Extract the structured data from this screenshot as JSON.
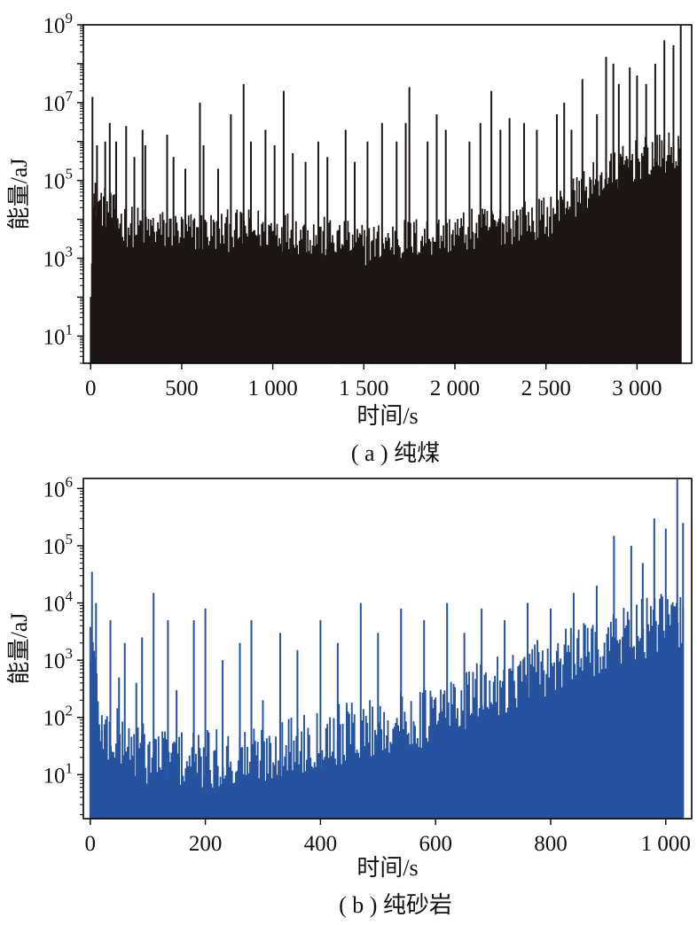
{
  "figure": {
    "captions": [
      "( a ) 纯煤",
      "( b ) 纯砂岩"
    ]
  },
  "chart_data": [
    {
      "type": "bar",
      "title": "",
      "xlabel": "时间/s",
      "ylabel": "能量/aJ",
      "yscale": "log",
      "xlim": [
        -40,
        3300
      ],
      "ylim": [
        2,
        1000000000
      ],
      "xticks": [
        0,
        500,
        1000,
        1500,
        2000,
        2500,
        3000
      ],
      "xtick_labels": [
        "0",
        "500",
        "1 000",
        "1 500",
        "2 000",
        "2 500",
        "3 000"
      ],
      "yticks": [
        10,
        1000,
        100000,
        10000000,
        1000000000
      ],
      "ytick_labels": [
        {
          "base": "10",
          "exp": "1"
        },
        {
          "base": "10",
          "exp": "3"
        },
        {
          "base": "10",
          "exp": "5"
        },
        {
          "base": "10",
          "exp": "7"
        },
        {
          "base": "10",
          "exp": "9"
        }
      ],
      "color": "#1c1614",
      "grid": false,
      "envelope": [
        [
          0,
          300
        ],
        [
          15,
          30000
        ],
        [
          200,
          6000
        ],
        [
          500,
          4000
        ],
        [
          1000,
          5000
        ],
        [
          1500,
          2000
        ],
        [
          2000,
          4000
        ],
        [
          2500,
          10000
        ],
        [
          2800,
          100000
        ],
        [
          3000,
          300000
        ],
        [
          3240,
          500000
        ]
      ],
      "peaks": [
        [
          10,
          14000000
        ],
        [
          35,
          800000
        ],
        [
          80,
          1000000
        ],
        [
          105,
          3000000
        ],
        [
          140,
          1000000
        ],
        [
          195,
          2500000
        ],
        [
          240,
          400000
        ],
        [
          285,
          2000000
        ],
        [
          300,
          800000
        ],
        [
          420,
          1500000
        ],
        [
          455,
          400000
        ],
        [
          520,
          200000
        ],
        [
          600,
          10000000
        ],
        [
          620,
          800000
        ],
        [
          700,
          200000
        ],
        [
          770,
          5000000
        ],
        [
          840,
          30000000
        ],
        [
          880,
          1000000
        ],
        [
          960,
          2000000
        ],
        [
          1010,
          800000
        ],
        [
          1060,
          20000000
        ],
        [
          1110,
          500000
        ],
        [
          1180,
          300000
        ],
        [
          1250,
          1000000
        ],
        [
          1300,
          400000
        ],
        [
          1400,
          2000000
        ],
        [
          1450,
          300000
        ],
        [
          1520,
          1000000
        ],
        [
          1600,
          3000000
        ],
        [
          1680,
          1000000
        ],
        [
          1730,
          3000000
        ],
        [
          1750,
          25000000
        ],
        [
          1850,
          1000000
        ],
        [
          1900,
          5000000
        ],
        [
          1950,
          2000000
        ],
        [
          2080,
          1000000
        ],
        [
          2140,
          3000000
        ],
        [
          2200,
          20000000
        ],
        [
          2250,
          2000000
        ],
        [
          2300,
          4000000
        ],
        [
          2380,
          3000000
        ],
        [
          2450,
          2000000
        ],
        [
          2560,
          5000000
        ],
        [
          2600,
          10000000
        ],
        [
          2640,
          2000000
        ],
        [
          2700,
          40000000
        ],
        [
          2780,
          5000000
        ],
        [
          2830,
          150000000
        ],
        [
          2870,
          100000000
        ],
        [
          2900,
          30000000
        ],
        [
          2960,
          80000000
        ],
        [
          3000,
          50000000
        ],
        [
          3050,
          30000000
        ],
        [
          3100,
          100000000
        ],
        [
          3150,
          400000000
        ],
        [
          3200,
          300000000
        ],
        [
          3240,
          1000000000
        ]
      ]
    },
    {
      "type": "bar",
      "title": "",
      "xlabel": "时间/s",
      "ylabel": "能量/aJ",
      "yscale": "log",
      "xlim": [
        -12,
        1045
      ],
      "ylim": [
        1.7,
        1500000
      ],
      "xticks": [
        0,
        200,
        400,
        600,
        800,
        1000
      ],
      "xtick_labels": [
        "0",
        "200",
        "400",
        "600",
        "800",
        "1 000"
      ],
      "yticks": [
        10,
        100,
        1000,
        10000,
        100000,
        1000000
      ],
      "ytick_labels": [
        {
          "base": "10",
          "exp": "1"
        },
        {
          "base": "10",
          "exp": "2"
        },
        {
          "base": "10",
          "exp": "3"
        },
        {
          "base": "10",
          "exp": "4"
        },
        {
          "base": "10",
          "exp": "5"
        },
        {
          "base": "10",
          "exp": "6"
        }
      ],
      "color": "#2653a0",
      "grid": false,
      "envelope": [
        [
          0,
          3000
        ],
        [
          20,
          50
        ],
        [
          100,
          20
        ],
        [
          200,
          15
        ],
        [
          300,
          20
        ],
        [
          400,
          40
        ],
        [
          500,
          60
        ],
        [
          600,
          100
        ],
        [
          700,
          300
        ],
        [
          800,
          700
        ],
        [
          900,
          2000
        ],
        [
          1000,
          4000
        ],
        [
          1030,
          4000
        ]
      ],
      "peaks": [
        [
          3,
          35000
        ],
        [
          10,
          10000
        ],
        [
          20,
          60
        ],
        [
          35,
          5000
        ],
        [
          50,
          500
        ],
        [
          60,
          2000
        ],
        [
          80,
          400
        ],
        [
          90,
          2500
        ],
        [
          110,
          15000
        ],
        [
          135,
          5000
        ],
        [
          150,
          300
        ],
        [
          180,
          5000
        ],
        [
          200,
          8000
        ],
        [
          230,
          1000
        ],
        [
          260,
          2000
        ],
        [
          280,
          5000
        ],
        [
          300,
          200
        ],
        [
          330,
          3000
        ],
        [
          360,
          1500
        ],
        [
          400,
          5000
        ],
        [
          430,
          2000
        ],
        [
          470,
          10000
        ],
        [
          500,
          3000
        ],
        [
          540,
          8000
        ],
        [
          580,
          5000
        ],
        [
          620,
          10000
        ],
        [
          650,
          3000
        ],
        [
          680,
          8000
        ],
        [
          720,
          5000
        ],
        [
          760,
          10000
        ],
        [
          800,
          8000
        ],
        [
          840,
          15000
        ],
        [
          880,
          20000
        ],
        [
          910,
          150000
        ],
        [
          940,
          100000
        ],
        [
          960,
          50000
        ],
        [
          980,
          300000
        ],
        [
          1000,
          200000
        ],
        [
          1020,
          1500000
        ],
        [
          1030,
          250000
        ]
      ]
    }
  ]
}
